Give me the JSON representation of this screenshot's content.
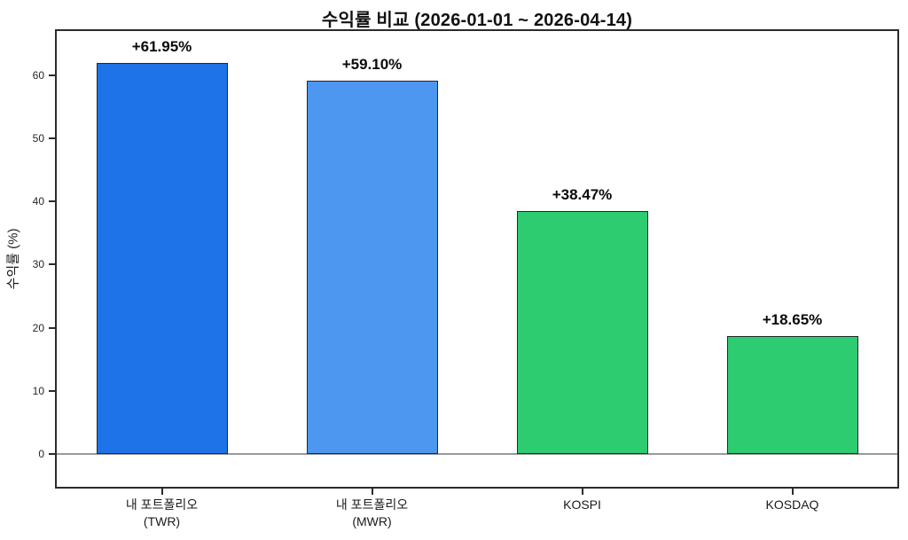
{
  "title": "수익률 비교 (2026-01-01 ~ 2026-04-14)",
  "colors": {
    "background": "#ffffff",
    "spine": "#2b2b2b",
    "zero_line": "#999999",
    "bar_edge": "#22282e",
    "text": "#1a1a1a"
  },
  "chart_data": {
    "type": "bar",
    "title": "수익률 비교 (2026-01-01 ~ 2026-04-14)",
    "xlabel": "",
    "ylabel": "수익률 (%)",
    "categories": [
      "내 포트폴리오 (TWR)",
      "내 포트폴리오 (MWR)",
      "KOSPI",
      "KOSDAQ"
    ],
    "category_label_lines": [
      [
        "내 포트폴리오",
        "(TWR)"
      ],
      [
        "내 포트폴리오",
        "(MWR)"
      ],
      [
        "KOSPI"
      ],
      [
        "KOSDAQ"
      ]
    ],
    "values": [
      61.95,
      59.1,
      38.47,
      18.65
    ],
    "value_labels": [
      "+61.95%",
      "+59.10%",
      "+38.47%",
      "+18.65%"
    ],
    "bar_colors": [
      "#1E73E8",
      "#4D97F0",
      "#2ECC71",
      "#2ECC71"
    ],
    "yticks": [
      0,
      10,
      20,
      30,
      40,
      50,
      60
    ],
    "ylim": [
      -5.2,
      67
    ],
    "grid": false,
    "legend": null,
    "zero_line": true
  }
}
